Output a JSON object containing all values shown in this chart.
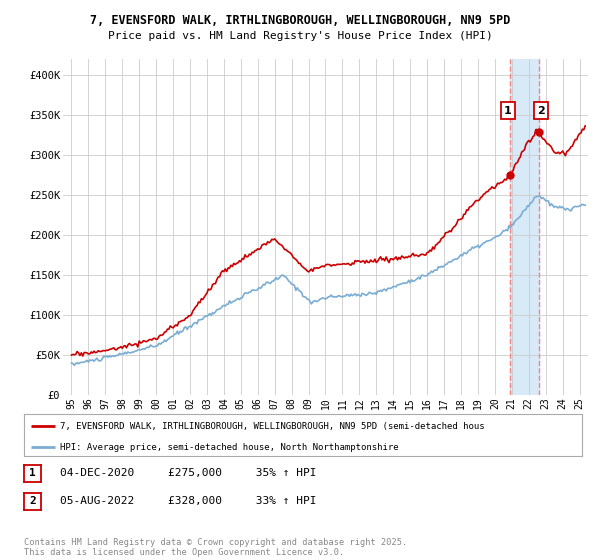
{
  "title_line1": "7, EVENSFORD WALK, IRTHLINGBOROUGH, WELLINGBOROUGH, NN9 5PD",
  "title_line2": "Price paid vs. HM Land Registry's House Price Index (HPI)",
  "xlim_start": 1994.5,
  "xlim_end": 2025.5,
  "ylim": [
    0,
    420000
  ],
  "yticks": [
    0,
    50000,
    100000,
    150000,
    200000,
    250000,
    300000,
    350000,
    400000
  ],
  "ytick_labels": [
    "£0",
    "£50K",
    "£100K",
    "£150K",
    "£200K",
    "£250K",
    "£300K",
    "£350K",
    "£400K"
  ],
  "xticks": [
    1995,
    1996,
    1997,
    1998,
    1999,
    2000,
    2001,
    2002,
    2003,
    2004,
    2005,
    2006,
    2007,
    2008,
    2009,
    2010,
    2011,
    2012,
    2013,
    2014,
    2015,
    2016,
    2017,
    2018,
    2019,
    2020,
    2021,
    2022,
    2023,
    2024,
    2025
  ],
  "xtick_labels": [
    "95",
    "96",
    "97",
    "98",
    "99",
    "00",
    "01",
    "02",
    "03",
    "04",
    "05",
    "06",
    "07",
    "08",
    "09",
    "10",
    "11",
    "12",
    "13",
    "14",
    "15",
    "16",
    "17",
    "18",
    "19",
    "20",
    "21",
    "22",
    "23",
    "24",
    "25"
  ],
  "sale1_x": 2020.92,
  "sale1_y": 275000,
  "sale2_x": 2022.58,
  "sale2_y": 328000,
  "legend_line1": "7, EVENSFORD WALK, IRTHLINGBOROUGH, WELLINGBOROUGH, NN9 5PD (semi-detached hous",
  "legend_line2": "HPI: Average price, semi-detached house, North Northamptonshire",
  "table_row1": [
    "1",
    "04-DEC-2020",
    "£275,000",
    "35% ↑ HPI"
  ],
  "table_row2": [
    "2",
    "05-AUG-2022",
    "£328,000",
    "33% ↑ HPI"
  ],
  "footer": "Contains HM Land Registry data © Crown copyright and database right 2025.\nThis data is licensed under the Open Government Licence v3.0.",
  "line_color_red": "#cc0000",
  "line_color_blue": "#7aadd4",
  "shade_color": "#d8eaf8",
  "vline_color": "#ee8888",
  "bg_color": "#ffffff",
  "grid_color": "#cccccc",
  "annotation_box_color": "#cc0000"
}
